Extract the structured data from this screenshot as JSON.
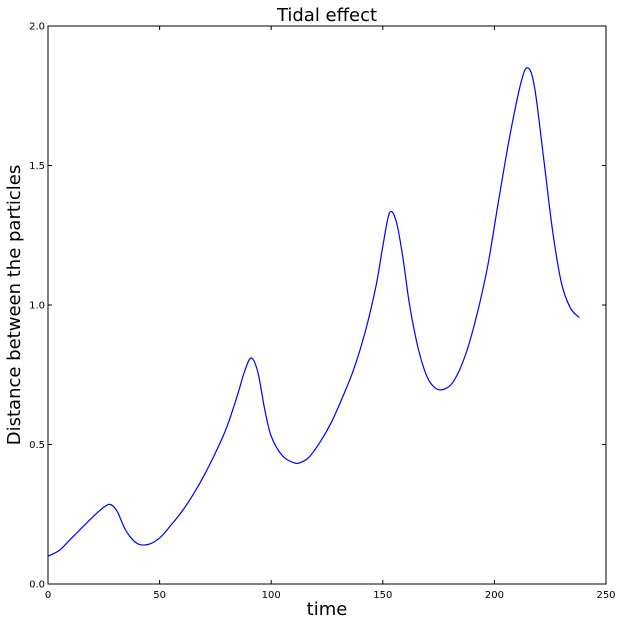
{
  "chart_data": {
    "type": "line",
    "title": "Tidal effect",
    "xlabel": "time",
    "ylabel": "Distance between the particles",
    "xlim": [
      0,
      250
    ],
    "ylim": [
      0.0,
      2.0
    ],
    "xticks": [
      "0",
      "50",
      "100",
      "150",
      "200",
      "250"
    ],
    "yticks": [
      "0.0",
      "0.5",
      "1.0",
      "1.5",
      "2.0"
    ],
    "grid": false,
    "series": [
      {
        "color": "#0000ff",
        "x": [
          0,
          5,
          10,
          15,
          20,
          25,
          28,
          31,
          35,
          40,
          45,
          50,
          55,
          60,
          65,
          70,
          75,
          80,
          85,
          88,
          91,
          94,
          97,
          100,
          105,
          110,
          113,
          117,
          122,
          127,
          132,
          137,
          142,
          147,
          150,
          153,
          156,
          159,
          162,
          166,
          170,
          174,
          178,
          182,
          187,
          192,
          197,
          202,
          207,
          212,
          215,
          218,
          222,
          226,
          230,
          234,
          238
        ],
        "y": [
          0.1,
          0.12,
          0.16,
          0.2,
          0.24,
          0.275,
          0.285,
          0.26,
          0.19,
          0.145,
          0.142,
          0.165,
          0.21,
          0.26,
          0.32,
          0.39,
          0.47,
          0.56,
          0.68,
          0.76,
          0.81,
          0.76,
          0.63,
          0.53,
          0.46,
          0.435,
          0.435,
          0.455,
          0.51,
          0.58,
          0.67,
          0.77,
          0.9,
          1.07,
          1.21,
          1.33,
          1.3,
          1.17,
          1.0,
          0.84,
          0.74,
          0.7,
          0.7,
          0.73,
          0.82,
          0.96,
          1.14,
          1.38,
          1.61,
          1.8,
          1.85,
          1.78,
          1.53,
          1.27,
          1.08,
          0.99,
          0.955
        ]
      }
    ]
  }
}
